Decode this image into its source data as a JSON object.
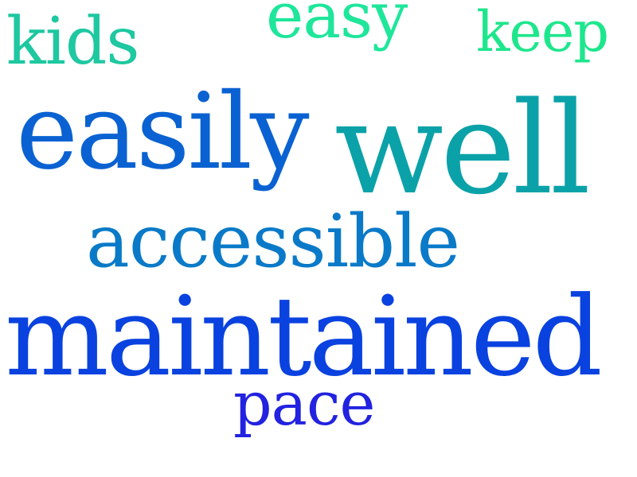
{
  "word_cloud": {
    "words": [
      {
        "id": "kids",
        "text": "kids",
        "color": "#1ec8a0"
      },
      {
        "id": "easy",
        "text": "easy",
        "color": "#1ee69a"
      },
      {
        "id": "keep",
        "text": "keep",
        "color": "#1ee68c"
      },
      {
        "id": "easily",
        "text": "easily",
        "color": "#0a62d2"
      },
      {
        "id": "well",
        "text": "well",
        "color": "#0aa2a8"
      },
      {
        "id": "accessible",
        "text": "accessible",
        "color": "#0a7ac8"
      },
      {
        "id": "maintained",
        "text": "maintained",
        "color": "#0a42e0"
      },
      {
        "id": "pace",
        "text": "pace",
        "color": "#2222e0"
      }
    ]
  }
}
